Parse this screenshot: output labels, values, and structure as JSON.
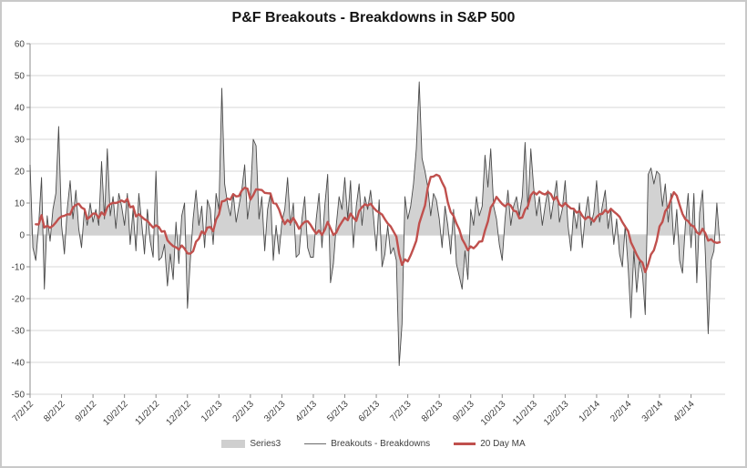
{
  "title": "P&F Breakouts - Breakdowns in S&P 500",
  "legend": {
    "series3_label": "Series3",
    "line_label": "Breakouts - Breakdowns",
    "ma_label": "20 Day MA"
  },
  "colors": {
    "area_fill": "#d2d2d2",
    "line": "#4a4a4a",
    "ma": "#c0504d",
    "gridline": "#d7d7d7",
    "zero_line": "#c0c0c0",
    "axis": "#8c8c8c",
    "label": "#3f3f3f",
    "border": "#c9c9c9"
  },
  "chart_data": {
    "type": "area",
    "title": "P&F Breakouts - Breakdowns in S&P 500",
    "xlabel": "",
    "ylabel": "",
    "ylim": [
      -50,
      60
    ],
    "y_tick_step": 10,
    "y_tick_labels": [
      "60",
      "50",
      "40",
      "30",
      "20",
      "10",
      "0",
      "-10",
      "-20",
      "-30",
      "-40",
      "-50"
    ],
    "x_tick_labels": [
      "7/2/12",
      "8/2/12",
      "9/2/12",
      "10/2/12",
      "11/2/12",
      "12/2/12",
      "1/2/13",
      "2/2/13",
      "3/2/13",
      "4/2/13",
      "5/2/13",
      "6/2/13",
      "7/2/13",
      "8/2/13",
      "9/2/13",
      "10/2/13",
      "11/2/13",
      "12/2/13",
      "1/2/14",
      "2/2/14",
      "3/2/14",
      "4/2/14"
    ],
    "points_per_month": 11,
    "grid": "horizontal",
    "legend_position": "bottom",
    "series": [
      {
        "name": "Series3",
        "type": "area",
        "note": "same daily values as line series, filled to zero"
      },
      {
        "name": "Breakouts - Breakdowns",
        "type": "line",
        "note": "daily values, see values array"
      },
      {
        "name": "20 Day MA",
        "type": "line",
        "derived": "20-day trailing moving average of Breakouts - Breakdowns",
        "window_points": 10
      }
    ],
    "values": [
      22,
      -4,
      -8,
      3,
      18,
      -17,
      6,
      -2,
      8,
      13,
      34,
      3,
      -6,
      8,
      17,
      5,
      14,
      2,
      -4,
      8,
      3,
      10,
      4,
      8,
      3,
      23,
      5,
      27,
      6,
      12,
      2,
      13,
      9,
      3,
      13,
      -3,
      8,
      -5,
      13,
      4,
      -6,
      8,
      -2,
      -7,
      20,
      -8,
      -7,
      -3,
      -16,
      -6,
      -14,
      4,
      -9,
      6,
      10,
      -23,
      -8,
      5,
      14,
      3,
      9,
      -4,
      11,
      8,
      -3,
      13,
      8,
      46,
      16,
      10,
      6,
      13,
      4,
      9,
      14,
      22,
      5,
      12,
      30,
      28,
      5,
      12,
      -5,
      8,
      13,
      -8,
      3,
      -6,
      4,
      8,
      18,
      3,
      10,
      -7,
      -6,
      5,
      12,
      -4,
      -7,
      -7,
      5,
      13,
      -4,
      9,
      19,
      -15,
      -9,
      3,
      12,
      8,
      18,
      5,
      17,
      -4,
      9,
      16,
      3,
      12,
      8,
      14,
      6,
      -5,
      11,
      -10,
      -6,
      3,
      -6,
      -4,
      -8,
      -41,
      -28,
      12,
      5,
      9,
      16,
      27,
      48,
      24,
      20,
      15,
      6,
      13,
      11,
      5,
      -4,
      9,
      3,
      -6,
      8,
      -9,
      -13,
      -17,
      -5,
      -14,
      8,
      3,
      12,
      6,
      9,
      25,
      15,
      27,
      9,
      5,
      -3,
      -8,
      5,
      14,
      3,
      9,
      12,
      6,
      12,
      29,
      8,
      27,
      15,
      6,
      12,
      3,
      9,
      14,
      5,
      11,
      17,
      4,
      8,
      17,
      3,
      -5,
      8,
      2,
      10,
      -4,
      6,
      12,
      3,
      7,
      17,
      4,
      9,
      14,
      2,
      8,
      -3,
      5,
      -6,
      -10,
      3,
      -10,
      -26,
      -5,
      -18,
      -8,
      -12,
      -25,
      19,
      21,
      16,
      20,
      19,
      9,
      16,
      4,
      13,
      -3,
      8,
      -8,
      -12,
      3,
      13,
      -4,
      13,
      -15,
      7,
      14,
      -6,
      -31,
      -8,
      -5,
      10,
      -2
    ]
  }
}
